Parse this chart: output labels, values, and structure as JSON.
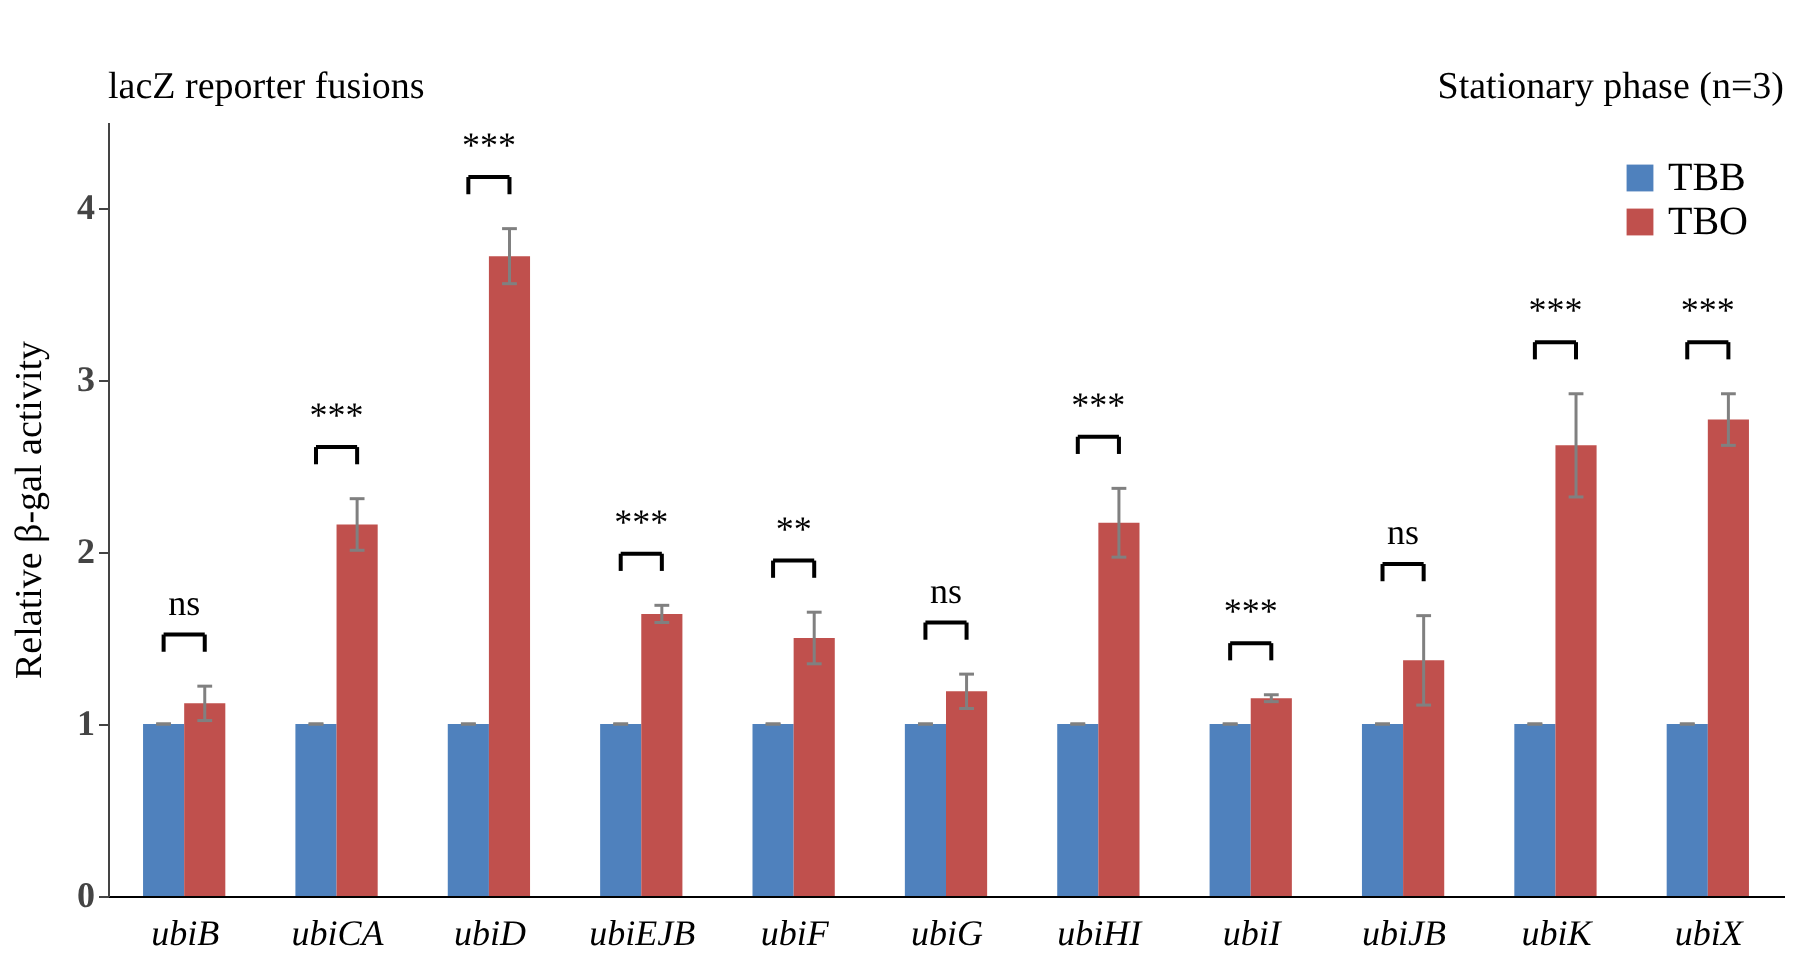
{
  "chart_data": {
    "type": "bar",
    "title": "lacZ reporter fusions",
    "subtitle": "Stationary phase (n=3)",
    "ylabel": "Relative β-gal activity",
    "categories": [
      "ubiB",
      "ubiCA",
      "ubiD",
      "ubiEJB",
      "ubiF",
      "ubiG",
      "ubiHI",
      "ubiI",
      "ubiJB",
      "ubiK",
      "ubiX"
    ],
    "series": [
      {
        "name": "TBB",
        "color": "#4f81bd",
        "values": [
          1,
          1,
          1,
          1,
          1,
          1,
          1,
          1,
          1,
          1,
          1
        ],
        "errors": [
          0,
          0,
          0,
          0,
          0,
          0,
          0,
          0,
          0,
          0,
          0
        ]
      },
      {
        "name": "TBO",
        "color": "#c0504d",
        "values": [
          1.12,
          2.16,
          3.72,
          1.64,
          1.5,
          1.19,
          2.17,
          1.15,
          1.37,
          2.62,
          2.77
        ],
        "errors": [
          0.1,
          0.15,
          0.16,
          0.05,
          0.15,
          0.1,
          0.2,
          0.02,
          0.26,
          0.3,
          0.15
        ]
      }
    ],
    "ylim": [
      0,
      4.5
    ],
    "yticks": [
      0,
      1,
      2,
      3,
      4
    ],
    "grid": false,
    "legend": "top right",
    "annotations": [
      "ns",
      "***",
      "***",
      "***",
      "**",
      "ns",
      "***",
      "***",
      "ns",
      "***",
      "***"
    ]
  }
}
